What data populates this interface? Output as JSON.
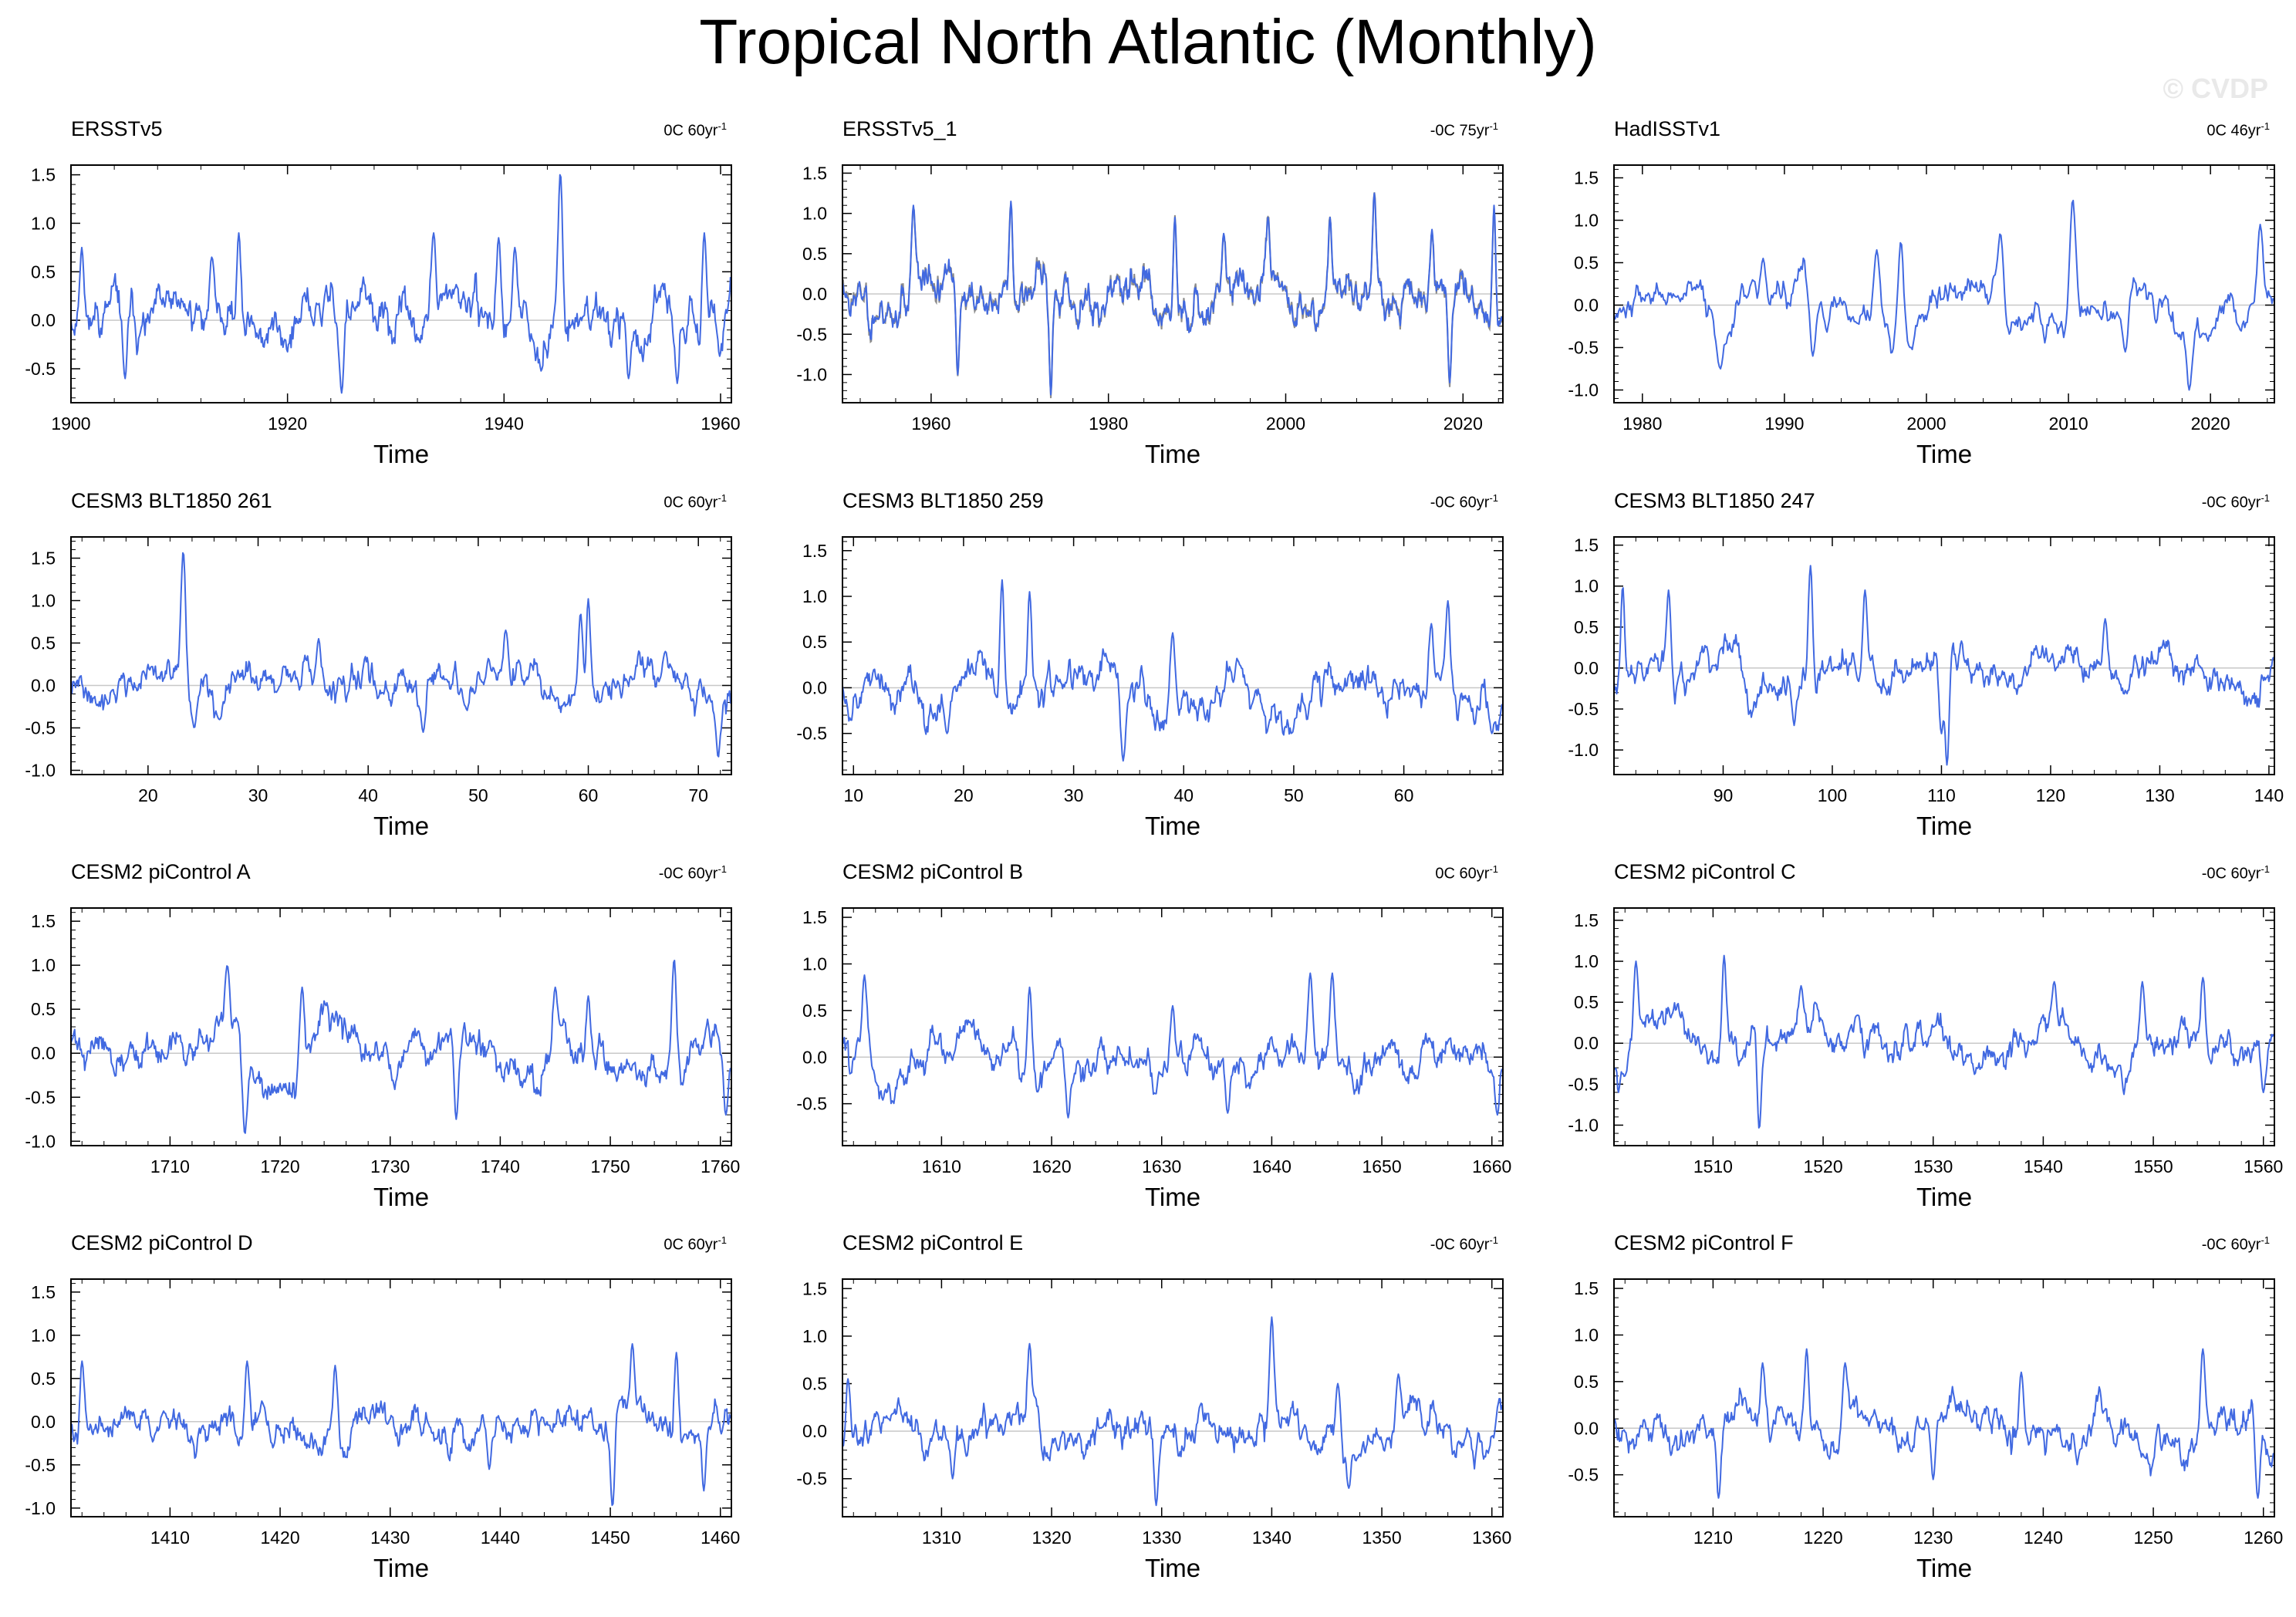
{
  "title": "Tropical North Atlantic (Monthly)",
  "copyright": "© CVDP",
  "colors": {
    "series": "#4169e1",
    "obs_alt": "#8c8c8c",
    "zero_line": "#c8c8c8",
    "axis": "#000000"
  },
  "chart_data": [
    {
      "type": "line",
      "title": "ERSSTv5",
      "trend_value": "0C",
      "trend_period": "60yr",
      "trend_exp": "-1",
      "xlabel": "Time",
      "xlim": [
        1900,
        1961
      ],
      "xticks": [
        1900,
        1920,
        1940,
        1960
      ],
      "xtick_labels": [
        "1900",
        "1920",
        "1940",
        "1960"
      ],
      "ylim": [
        -0.85,
        1.6
      ],
      "yticks": [
        -0.5,
        0.0,
        0.5,
        1.0,
        1.5
      ],
      "ytick_labels": [
        "-0.5",
        "0.0",
        "0.5",
        "1.0",
        "1.5"
      ],
      "seed": 11,
      "amp": 0.27,
      "offset": 0.0,
      "spikes": [
        [
          1901,
          0.75
        ],
        [
          1905,
          -0.6
        ],
        [
          1915.5,
          0.9
        ],
        [
          1925,
          -0.75
        ],
        [
          1933.5,
          0.9
        ],
        [
          1939.5,
          0.85
        ],
        [
          1941,
          0.75
        ],
        [
          1945.2,
          1.52
        ],
        [
          1951.5,
          -0.6
        ],
        [
          1958.5,
          0.9
        ],
        [
          1956,
          -0.65
        ],
        [
          1913,
          0.65
        ]
      ]
    },
    {
      "type": "line",
      "title": "ERSSTv5_1",
      "trend_value": "-0C",
      "trend_period": "75yr",
      "trend_exp": "-1",
      "xlabel": "Time",
      "xlim": [
        1950,
        2024.5
      ],
      "xticks": [
        1960,
        1980,
        2000,
        2020
      ],
      "xtick_labels": [
        "1960",
        "1980",
        "2000",
        "2020"
      ],
      "ylim": [
        -1.35,
        1.6
      ],
      "yticks": [
        -1.0,
        -0.5,
        0.0,
        0.5,
        1.0,
        1.5
      ],
      "ytick_labels": [
        "-1.0",
        "-0.5",
        "0.0",
        "0.5",
        "1.0",
        "1.5"
      ],
      "seed": 23,
      "amp": 0.28,
      "offset": 0.0,
      "secondary": true,
      "spikes": [
        [
          1958,
          1.1
        ],
        [
          1963,
          -1.0
        ],
        [
          1969,
          1.15
        ],
        [
          1973.5,
          -1.25
        ],
        [
          1987.5,
          0.95
        ],
        [
          1998,
          0.95
        ],
        [
          2005,
          0.95
        ],
        [
          2010,
          1.25
        ],
        [
          2018.5,
          -1.1
        ],
        [
          2023.5,
          1.1
        ],
        [
          1993,
          0.75
        ],
        [
          2016.5,
          0.8
        ]
      ]
    },
    {
      "type": "line",
      "title": "HadISSTv1",
      "trend_value": "0C",
      "trend_period": "46yr",
      "trend_exp": "-1",
      "xlabel": "Time",
      "xlim": [
        1978,
        2024.5
      ],
      "xticks": [
        1980,
        1990,
        2000,
        2010,
        2020
      ],
      "xtick_labels": [
        "1980",
        "1990",
        "2000",
        "2010",
        "2020"
      ],
      "ylim": [
        -1.15,
        1.65
      ],
      "yticks": [
        -1.0,
        -0.5,
        0.0,
        0.5,
        1.0,
        1.5
      ],
      "ytick_labels": [
        "-1.0",
        "-0.5",
        "0.0",
        "0.5",
        "1.0",
        "1.5"
      ],
      "seed": 37,
      "amp": 0.24,
      "offset": 0.0,
      "spikes": [
        [
          1988.5,
          0.55
        ],
        [
          1985.5,
          -0.75
        ],
        [
          1996.5,
          0.65
        ],
        [
          1998.2,
          0.75
        ],
        [
          2005.2,
          0.85
        ],
        [
          2010.3,
          1.25
        ],
        [
          2018.5,
          -1.0
        ],
        [
          2023.5,
          0.95
        ],
        [
          1992,
          -0.6
        ],
        [
          2014,
          -0.55
        ]
      ]
    },
    {
      "type": "line",
      "title": "CESM3 BLT1850 261",
      "trend_value": "0C",
      "trend_period": "60yr",
      "trend_exp": "-1",
      "xlabel": "Time",
      "xlim": [
        13,
        73
      ],
      "xticks": [
        20,
        30,
        40,
        50,
        60,
        70
      ],
      "xtick_labels": [
        "20",
        "30",
        "40",
        "50",
        "60",
        "70"
      ],
      "ylim": [
        -1.05,
        1.75
      ],
      "yticks": [
        -1.0,
        -0.5,
        0.0,
        0.5,
        1.0,
        1.5
      ],
      "ytick_labels": [
        "-1.0",
        "-0.5",
        "0.0",
        "0.5",
        "1.0",
        "1.5"
      ],
      "seed": 41,
      "amp": 0.22,
      "offset": 0.0,
      "spikes": [
        [
          23.2,
          1.58
        ],
        [
          24.2,
          -0.5
        ],
        [
          35.5,
          0.55
        ],
        [
          52.5,
          0.65
        ],
        [
          60,
          1.02
        ],
        [
          59.3,
          0.85
        ],
        [
          71.8,
          -0.85
        ],
        [
          67,
          0.4
        ],
        [
          45,
          -0.55
        ]
      ]
    },
    {
      "type": "line",
      "title": "CESM3 BLT1850 259",
      "trend_value": "-0C",
      "trend_period": "60yr",
      "trend_exp": "-1",
      "xlabel": "Time",
      "xlim": [
        9,
        69
      ],
      "xticks": [
        10,
        20,
        30,
        40,
        50,
        60
      ],
      "xtick_labels": [
        "10",
        "20",
        "30",
        "40",
        "50",
        "60"
      ],
      "ylim": [
        -0.95,
        1.65
      ],
      "yticks": [
        -0.5,
        0.0,
        0.5,
        1.0,
        1.5
      ],
      "ytick_labels": [
        "-0.5",
        "0.0",
        "0.5",
        "1.0",
        "1.5"
      ],
      "seed": 53,
      "amp": 0.25,
      "offset": 0.0,
      "spikes": [
        [
          23.5,
          1.18
        ],
        [
          26,
          1.05
        ],
        [
          34.5,
          -0.8
        ],
        [
          64,
          0.95
        ],
        [
          62.5,
          0.7
        ],
        [
          68,
          -0.5
        ],
        [
          18.5,
          -0.5
        ],
        [
          39,
          0.6
        ]
      ]
    },
    {
      "type": "line",
      "title": "CESM3 BLT1850 247",
      "trend_value": "-0C",
      "trend_period": "60yr",
      "trend_exp": "-1",
      "xlabel": "Time",
      "xlim": [
        80,
        140.5
      ],
      "xticks": [
        90,
        100,
        110,
        120,
        130,
        140
      ],
      "xtick_labels": [
        "90",
        "100",
        "110",
        "120",
        "130",
        "140"
      ],
      "ylim": [
        -1.3,
        1.6
      ],
      "yticks": [
        -1.0,
        -0.5,
        0.0,
        0.5,
        1.0,
        1.5
      ],
      "ytick_labels": [
        "-1.0",
        "-0.5",
        "0.0",
        "0.5",
        "1.0",
        "1.5"
      ],
      "seed": 67,
      "amp": 0.24,
      "offset": 0.0,
      "spikes": [
        [
          80.8,
          1.0
        ],
        [
          85,
          0.95
        ],
        [
          98,
          1.25
        ],
        [
          103,
          0.95
        ],
        [
          110.5,
          -1.2
        ],
        [
          110,
          -0.8
        ],
        [
          96.5,
          -0.7
        ],
        [
          125,
          0.6
        ]
      ]
    },
    {
      "type": "line",
      "title": "CESM2 piControl A",
      "trend_value": "-0C",
      "trend_period": "60yr",
      "trend_exp": "-1",
      "xlabel": "Time",
      "xlim": [
        1701,
        1761
      ],
      "xticks": [
        1710,
        1720,
        1730,
        1740,
        1750,
        1760
      ],
      "xtick_labels": [
        "1710",
        "1720",
        "1730",
        "1740",
        "1750",
        "1760"
      ],
      "ylim": [
        -1.05,
        1.65
      ],
      "yticks": [
        -1.0,
        -0.5,
        0.0,
        0.5,
        1.0,
        1.5
      ],
      "ytick_labels": [
        "-1.0",
        "-0.5",
        "0.0",
        "0.5",
        "1.0",
        "1.5"
      ],
      "seed": 71,
      "amp": 0.24,
      "offset": 0.0,
      "spikes": [
        [
          1715.2,
          1.0
        ],
        [
          1716.8,
          -0.92
        ],
        [
          1722,
          0.75
        ],
        [
          1736,
          -0.75
        ],
        [
          1745,
          0.75
        ],
        [
          1755.8,
          1.07
        ],
        [
          1760.5,
          -0.7
        ],
        [
          1748,
          0.65
        ]
      ]
    },
    {
      "type": "line",
      "title": "CESM2 piControl B",
      "trend_value": "0C",
      "trend_period": "60yr",
      "trend_exp": "-1",
      "xlabel": "Time",
      "xlim": [
        1601,
        1661
      ],
      "xticks": [
        1610,
        1620,
        1630,
        1640,
        1650,
        1660
      ],
      "xtick_labels": [
        "1610",
        "1620",
        "1630",
        "1640",
        "1650",
        "1660"
      ],
      "ylim": [
        -0.95,
        1.6
      ],
      "yticks": [
        -0.5,
        0.0,
        0.5,
        1.0,
        1.5
      ],
      "ytick_labels": [
        "-0.5",
        "0.0",
        "0.5",
        "1.0",
        "1.5"
      ],
      "seed": 83,
      "amp": 0.23,
      "offset": 0.0,
      "spikes": [
        [
          1603,
          0.88
        ],
        [
          1618,
          0.75
        ],
        [
          1621.5,
          -0.65
        ],
        [
          1636,
          -0.6
        ],
        [
          1643.5,
          0.9
        ],
        [
          1645.5,
          0.9
        ],
        [
          1660.5,
          -0.62
        ],
        [
          1631,
          0.55
        ]
      ]
    },
    {
      "type": "line",
      "title": "CESM2 piControl C",
      "trend_value": "-0C",
      "trend_period": "60yr",
      "trend_exp": "-1",
      "xlabel": "Time",
      "xlim": [
        1501,
        1561
      ],
      "xticks": [
        1510,
        1520,
        1530,
        1540,
        1550,
        1560
      ],
      "xtick_labels": [
        "1510",
        "1520",
        "1530",
        "1540",
        "1550",
        "1560"
      ],
      "ylim": [
        -1.25,
        1.65
      ],
      "yticks": [
        -1.0,
        -0.5,
        0.0,
        0.5,
        1.0,
        1.5
      ],
      "ytick_labels": [
        "-1.0",
        "-0.5",
        "0.0",
        "0.5",
        "1.0",
        "1.5"
      ],
      "seed": 97,
      "amp": 0.24,
      "offset": 0.0,
      "spikes": [
        [
          1503,
          1.0
        ],
        [
          1511,
          1.07
        ],
        [
          1514.2,
          -1.05
        ],
        [
          1518,
          0.7
        ],
        [
          1541,
          0.75
        ],
        [
          1549,
          0.75
        ],
        [
          1554.5,
          0.8
        ],
        [
          1560,
          -0.6
        ]
      ]
    },
    {
      "type": "line",
      "title": "CESM2 piControl D",
      "trend_value": "0C",
      "trend_period": "60yr",
      "trend_exp": "-1",
      "xlabel": "Time",
      "xlim": [
        1401,
        1461
      ],
      "xticks": [
        1410,
        1420,
        1430,
        1440,
        1450,
        1460
      ],
      "xtick_labels": [
        "1410",
        "1420",
        "1430",
        "1440",
        "1450",
        "1460"
      ],
      "ylim": [
        -1.1,
        1.65
      ],
      "yticks": [
        -1.0,
        -0.5,
        0.0,
        0.5,
        1.0,
        1.5
      ],
      "ytick_labels": [
        "-1.0",
        "-0.5",
        "0.0",
        "0.5",
        "1.0",
        "1.5"
      ],
      "seed": 101,
      "amp": 0.23,
      "offset": 0.0,
      "spikes": [
        [
          1402,
          0.7
        ],
        [
          1417,
          0.7
        ],
        [
          1425,
          0.65
        ],
        [
          1450.2,
          -0.98
        ],
        [
          1452,
          0.9
        ],
        [
          1456,
          0.8
        ],
        [
          1458.5,
          -0.8
        ],
        [
          1439,
          -0.55
        ]
      ]
    },
    {
      "type": "line",
      "title": "CESM2 piControl E",
      "trend_value": "-0C",
      "trend_period": "60yr",
      "trend_exp": "-1",
      "xlabel": "Time",
      "xlim": [
        1301,
        1361
      ],
      "xticks": [
        1310,
        1320,
        1330,
        1340,
        1350,
        1360
      ],
      "xtick_labels": [
        "1310",
        "1320",
        "1330",
        "1340",
        "1350",
        "1360"
      ],
      "ylim": [
        -0.9,
        1.6
      ],
      "yticks": [
        -0.5,
        0.0,
        0.5,
        1.0,
        1.5
      ],
      "ytick_labels": [
        "-0.5",
        "0.0",
        "0.5",
        "1.0",
        "1.5"
      ],
      "seed": 113,
      "amp": 0.22,
      "offset": 0.0,
      "spikes": [
        [
          1301.5,
          0.55
        ],
        [
          1318,
          0.92
        ],
        [
          1329.5,
          -0.78
        ],
        [
          1340,
          1.2
        ],
        [
          1346,
          0.5
        ],
        [
          1351.5,
          0.6
        ],
        [
          1347,
          -0.6
        ],
        [
          1311,
          -0.5
        ]
      ]
    },
    {
      "type": "line",
      "title": "CESM2 piControl F",
      "trend_value": "-0C",
      "trend_period": "60yr",
      "trend_exp": "-1",
      "xlabel": "Time",
      "xlim": [
        1201,
        1261
      ],
      "xticks": [
        1210,
        1220,
        1230,
        1240,
        1250,
        1260
      ],
      "xtick_labels": [
        "1210",
        "1220",
        "1230",
        "1240",
        "1250",
        "1260"
      ],
      "ylim": [
        -0.95,
        1.6
      ],
      "yticks": [
        -0.5,
        0.0,
        0.5,
        1.0,
        1.5
      ],
      "ytick_labels": [
        "-0.5",
        "0.0",
        "0.5",
        "1.0",
        "1.5"
      ],
      "seed": 127,
      "amp": 0.22,
      "offset": 0.0,
      "spikes": [
        [
          1210.5,
          -0.75
        ],
        [
          1214.5,
          0.7
        ],
        [
          1218.5,
          0.85
        ],
        [
          1238,
          0.6
        ],
        [
          1254.5,
          0.85
        ],
        [
          1259.5,
          -0.75
        ],
        [
          1222,
          0.7
        ],
        [
          1230,
          -0.55
        ]
      ]
    }
  ]
}
